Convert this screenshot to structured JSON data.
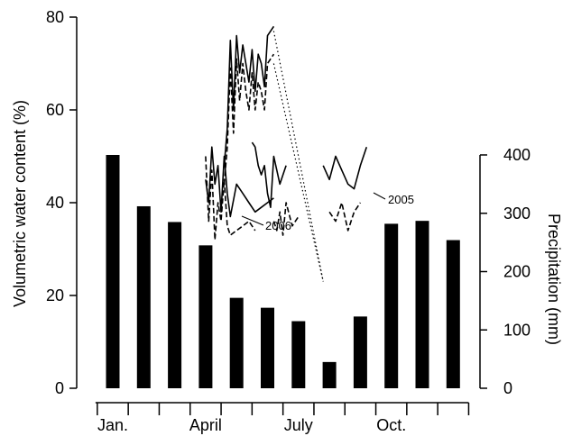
{
  "chart_data": {
    "type": "bar",
    "title": "",
    "xlabel": "",
    "ylabel_left": "Volumetric water content (%)",
    "ylabel_right": "Precipitation (mm)",
    "left_axis": {
      "ylim": [
        0,
        80
      ],
      "ticks": [
        0,
        20,
        40,
        60,
        80
      ]
    },
    "right_axis": {
      "ylim": [
        0,
        400
      ],
      "ticks": [
        0,
        100,
        200,
        300,
        400
      ]
    },
    "x_tick_labels": [
      {
        "label": "Jan.",
        "month": 1
      },
      {
        "label": "April",
        "month": 4
      },
      {
        "label": "July",
        "month": 7
      },
      {
        "label": "Oct.",
        "month": 10
      }
    ],
    "bar_series": {
      "name": "Precipitation",
      "axis": "right",
      "categories": [
        "Jan",
        "Feb",
        "Mar",
        "Apr",
        "May",
        "Jun",
        "Jul",
        "Aug",
        "Sep",
        "Oct",
        "Nov",
        "Dec"
      ],
      "values": [
        400,
        312,
        285,
        245,
        155,
        138,
        115,
        45,
        123,
        282,
        287,
        254
      ]
    },
    "line_series": [
      {
        "name": "2005",
        "style": "solid",
        "axis": "left",
        "segments": [
          {
            "x": [
              4.0,
              4.1,
              4.2,
              4.3,
              4.4,
              4.5,
              4.6,
              4.7,
              4.8,
              5.0,
              5.2,
              5.4,
              5.6,
              5.8,
              6.0,
              6.2
            ],
            "y": [
              45,
              40,
              52,
              44,
              48,
              38,
              50,
              42,
              37,
              44,
              42,
              40,
              38,
              39,
              40,
              41
            ]
          },
          {
            "x": [
              5.5,
              5.6,
              5.7,
              5.8,
              5.9,
              6.0,
              6.1,
              6.2,
              6.3,
              6.4,
              6.5,
              6.6
            ],
            "y": [
              53,
              52,
              48,
              46,
              48,
              42,
              39,
              50,
              47,
              44,
              46,
              48
            ]
          },
          {
            "x": [
              7.8,
              8.0,
              8.2,
              8.4,
              8.6,
              8.8,
              9.0,
              9.2
            ],
            "y": [
              48,
              45,
              50,
              47,
              44,
              43,
              48,
              52
            ]
          }
        ]
      },
      {
        "name": "2006",
        "style": "dashed",
        "axis": "left",
        "segments": [
          {
            "x": [
              4.0,
              4.1,
              4.2,
              4.3,
              4.4,
              4.5,
              4.6,
              4.7,
              4.8,
              5.0,
              5.2,
              5.4,
              5.6
            ],
            "y": [
              50,
              36,
              47,
              32,
              40,
              36,
              45,
              35,
              33,
              34,
              35,
              36,
              34
            ]
          },
          {
            "x": [
              6.2,
              6.3,
              6.4,
              6.5,
              6.6,
              6.8,
              7.0
            ],
            "y": [
              36,
              34,
              38,
              33,
              40,
              35,
              37
            ]
          },
          {
            "x": [
              8.0,
              8.2,
              8.4,
              8.6,
              8.8,
              9.0
            ],
            "y": [
              38,
              36,
              40,
              34,
              38,
              40
            ]
          }
        ]
      },
      {
        "name": "",
        "style": "solid-peak",
        "axis": "left",
        "segments": [
          {
            "x": [
              4.6,
              4.7,
              4.8,
              4.9,
              5.0,
              5.1,
              5.2,
              5.3,
              5.4,
              5.5,
              5.6,
              5.7,
              5.8,
              5.9,
              6.0,
              6.2
            ],
            "y": [
              48,
              56,
              75,
              60,
              76,
              68,
              74,
              70,
              66,
              73,
              64,
              72,
              70,
              65,
              76,
              78
            ]
          }
        ]
      },
      {
        "name": "",
        "style": "dashed-peak",
        "axis": "left",
        "segments": [
          {
            "x": [
              4.6,
              4.7,
              4.8,
              4.9,
              5.0,
              5.1,
              5.2,
              5.3,
              5.4,
              5.5,
              5.6,
              5.7,
              5.8,
              5.9,
              6.0,
              6.2
            ],
            "y": [
              44,
              52,
              69,
              55,
              71,
              62,
              70,
              64,
              60,
              68,
              60,
              66,
              64,
              60,
              70,
              72
            ]
          }
        ]
      }
    ],
    "dotted_connectors": [
      {
        "x": [
          6.2,
          7.8
        ],
        "y": [
          77,
          23
        ]
      },
      {
        "x": [
          6.2,
          7.8
        ],
        "y": [
          70,
          23
        ]
      }
    ],
    "annotations": [
      {
        "text": "2005",
        "series": "2005"
      },
      {
        "text": "2006",
        "series": "2006"
      }
    ]
  }
}
